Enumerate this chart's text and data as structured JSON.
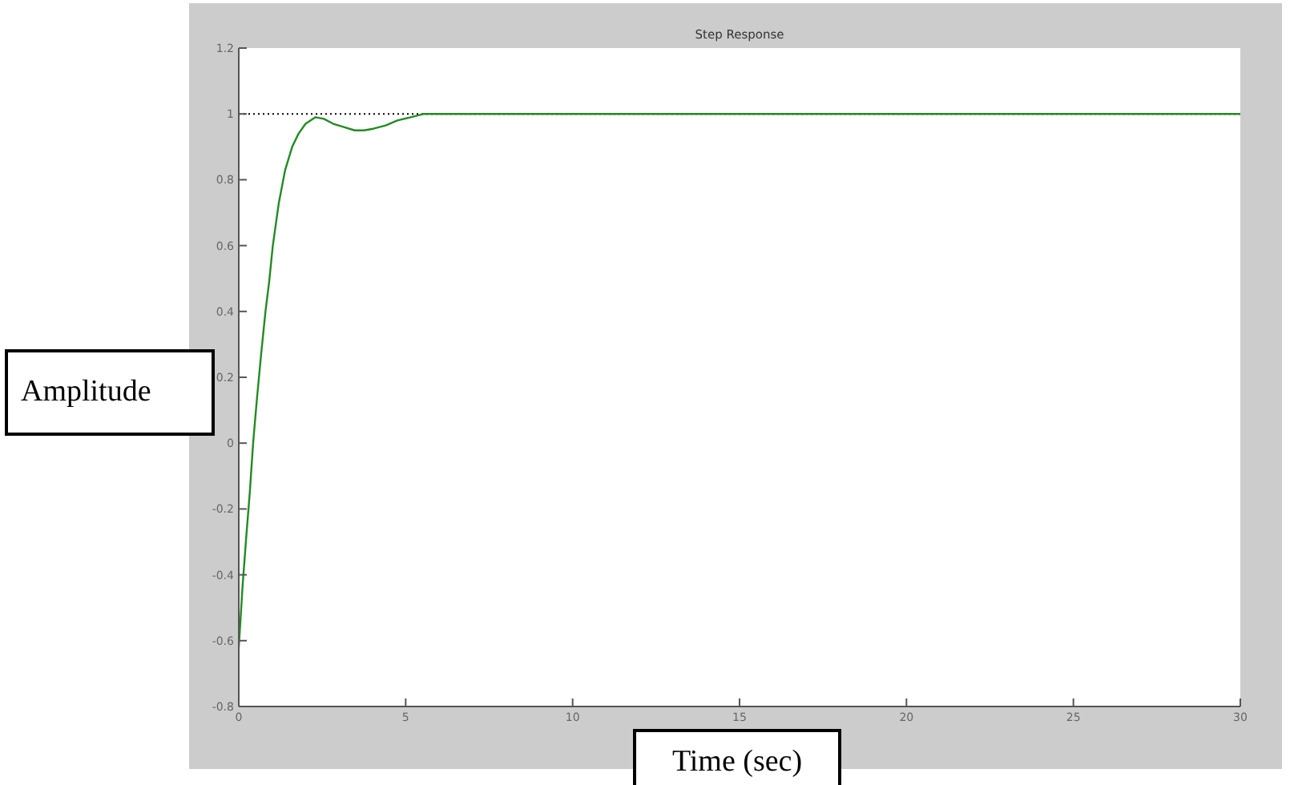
{
  "chart_data": {
    "type": "line",
    "title": "Step Response",
    "xlabel": "Time (sec)",
    "ylabel": "Amplitude",
    "x": [
      0,
      0.05,
      0.11,
      0.22,
      0.33,
      0.43,
      0.54,
      0.67,
      0.8,
      0.91,
      1.02,
      1.2,
      1.39,
      1.6,
      1.79,
      2.0,
      2.3,
      2.55,
      2.83,
      3.15,
      3.47,
      3.75,
      4.03,
      4.4,
      4.75,
      5.15,
      5.55,
      6,
      10,
      15,
      20,
      25,
      30
    ],
    "series": [
      {
        "color": "#228b22",
        "values": [
          -0.62,
          -0.54,
          -0.44,
          -0.29,
          -0.15,
          0.0,
          0.13,
          0.27,
          0.4,
          0.49,
          0.6,
          0.73,
          0.83,
          0.9,
          0.94,
          0.97,
          0.99,
          0.985,
          0.97,
          0.96,
          0.95,
          0.95,
          0.955,
          0.965,
          0.98,
          0.99,
          1.0,
          1.0,
          1,
          1,
          1,
          1,
          1
        ]
      }
    ],
    "xlim": [
      0,
      30
    ],
    "xticks": [
      0,
      5,
      10,
      15,
      20,
      25,
      30
    ],
    "ylim": [
      -0.8,
      1.2
    ],
    "yticks": [
      -0.8,
      -0.6,
      -0.4,
      -0.2,
      0,
      0.2,
      0.4,
      0.6,
      0.8,
      1,
      1.2
    ],
    "ref_lines": [
      {
        "axis": "y",
        "value": 1,
        "color": "#000000",
        "line_style": "dotted"
      }
    ]
  }
}
